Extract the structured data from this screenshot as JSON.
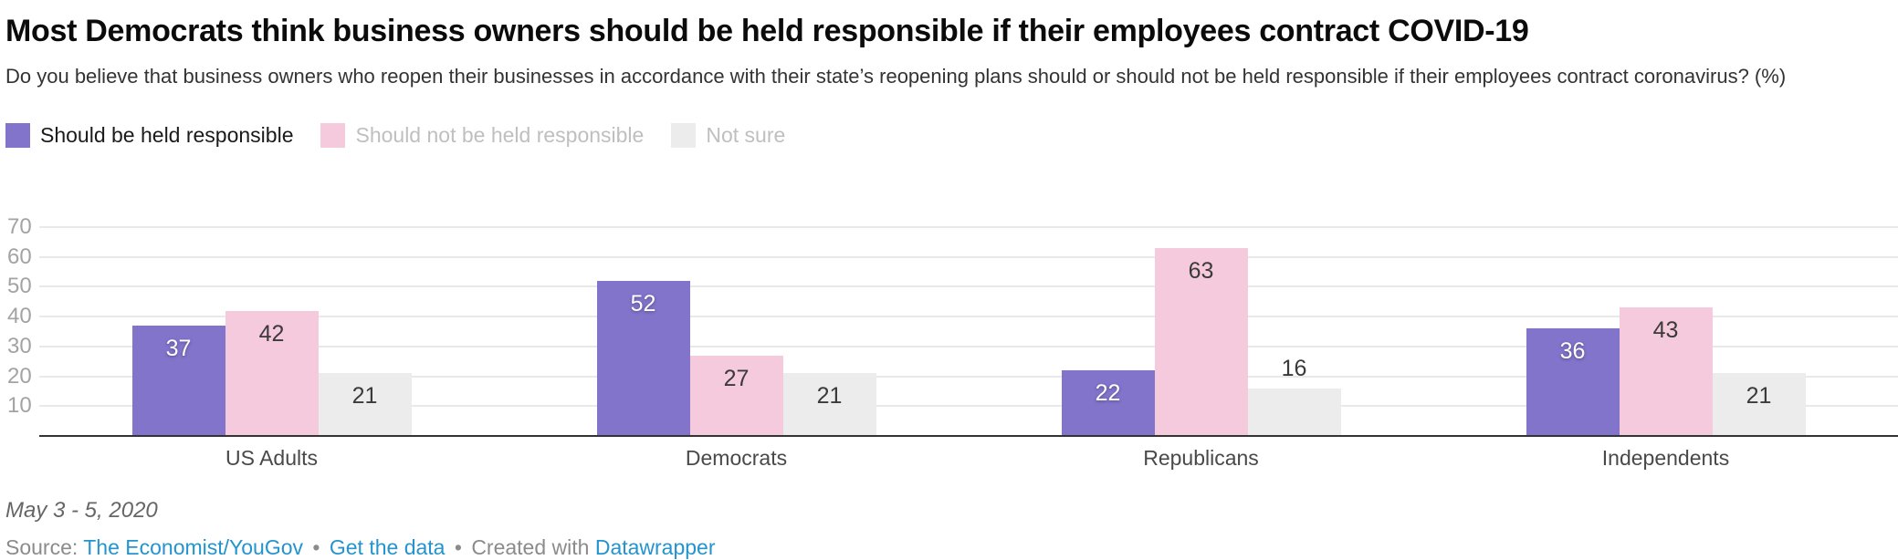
{
  "header": {
    "title": "Most Democrats think business owners should be held responsible if their employees contract COVID-19",
    "subtitle": "Do you believe that business owners who reopen their businesses in accordance with their state’s reopening plans should or should not be held responsible if their employees contract coronavirus? (%)"
  },
  "chart_data": {
    "type": "bar",
    "grouped": true,
    "categories": [
      "US Adults",
      "Democrats",
      "Republicans",
      "Independents"
    ],
    "series": [
      {
        "name": "Should be held responsible",
        "color": "#8273CB",
        "label_style": "light",
        "values": [
          37,
          52,
          22,
          36
        ]
      },
      {
        "name": "Should not be held responsible",
        "color": "#F5CADC",
        "label_style": "dark",
        "values": [
          42,
          27,
          63,
          43
        ]
      },
      {
        "name": "Not sure",
        "color": "#ECECEC",
        "label_style": "dark",
        "values": [
          21,
          21,
          16,
          21
        ]
      }
    ],
    "yticks": [
      10,
      20,
      30,
      40,
      50,
      60,
      70
    ],
    "ylim": [
      0,
      73
    ],
    "unit": "%",
    "grid": true,
    "legend_position": "top"
  },
  "footer": {
    "date_note": "May 3 - 5, 2020",
    "source_label": "Source:",
    "source_link": "The Economist/YouGov",
    "separator": "•",
    "get_data_link": "Get the data",
    "created_with": "Created with",
    "tool_link": "Datawrapper"
  },
  "colors": {
    "accent_purple": "#8273CB",
    "accent_pink": "#F5CADC",
    "neutral_gray": "#ECECEC",
    "link_blue": "#2394CE",
    "gridline": "#E9E9E9",
    "baseline": "#333333"
  }
}
